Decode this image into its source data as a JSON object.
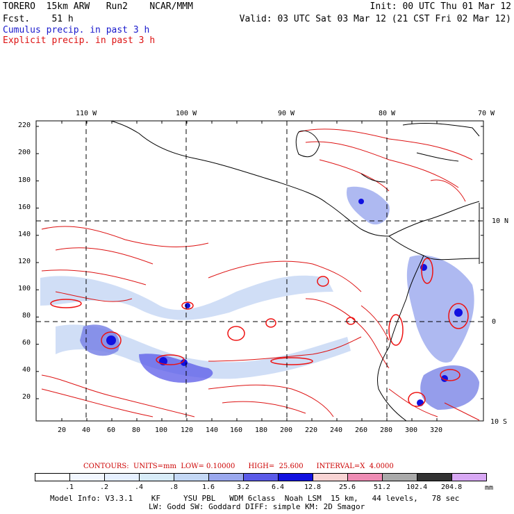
{
  "header": {
    "model": "TORERO  15km ARW   Run2    NCAR/MMM",
    "fcst": "Fcst.    51 h",
    "init": "Init: 00 UTC Thu 01 Mar 12",
    "valid": "Valid: 03 UTC Sat 03 Mar 12 (21 CST Fri 02 Mar 12)",
    "cumulus": "Cumulus precip. in past 3 h",
    "explicit": "Explicit precip. in past 3 h"
  },
  "map": {
    "lon_labels": [
      "110 W",
      "100 W",
      "90 W",
      "80 W",
      "70 W"
    ],
    "lat_labels": [
      "10 N",
      "0",
      "10 S"
    ],
    "y_ticks": [
      "220",
      "200",
      "180",
      "160",
      "140",
      "120",
      "100",
      "80",
      "60",
      "40",
      "20"
    ],
    "x_ticks": [
      "20",
      "40",
      "60",
      "80",
      "100",
      "120",
      "140",
      "160",
      "180",
      "200",
      "220",
      "240",
      "260",
      "280",
      "300",
      "320"
    ],
    "colors": {
      "cumulus": "#1a1acc",
      "explicit": "#dd1111",
      "grid": "#000000"
    }
  },
  "colorbar": {
    "labels": [
      ".1",
      ".2",
      ".4",
      ".8",
      "1.6",
      "3.2",
      "6.4",
      "12.8",
      "25.6",
      "51.2",
      "102.4",
      "204.8"
    ],
    "unit": "mm",
    "colors": [
      "#ffffff",
      "#f2f7ff",
      "#e6f0ff",
      "#d8ecf8",
      "#c4d8f5",
      "#9aa8ee",
      "#5a5ae8",
      "#1010e0",
      "#f8d4d4",
      "#ee8cb4",
      "#aaaaaa",
      "#333333",
      "#d8a8f4"
    ]
  },
  "contours": "CONTOURS:  UNITS=mm  LOW= 0.10000      HIGH=  25.600      INTERVAL=X  4.0000",
  "info": {
    "line1": "Model Info: V3.3.1    KF     YSU PBL   WDM 6class  Noah LSM  15 km,   44 levels,   78 sec",
    "line2": "LW: Godd SW: Goddard DIFF: simple KM: 2D Smagor"
  }
}
